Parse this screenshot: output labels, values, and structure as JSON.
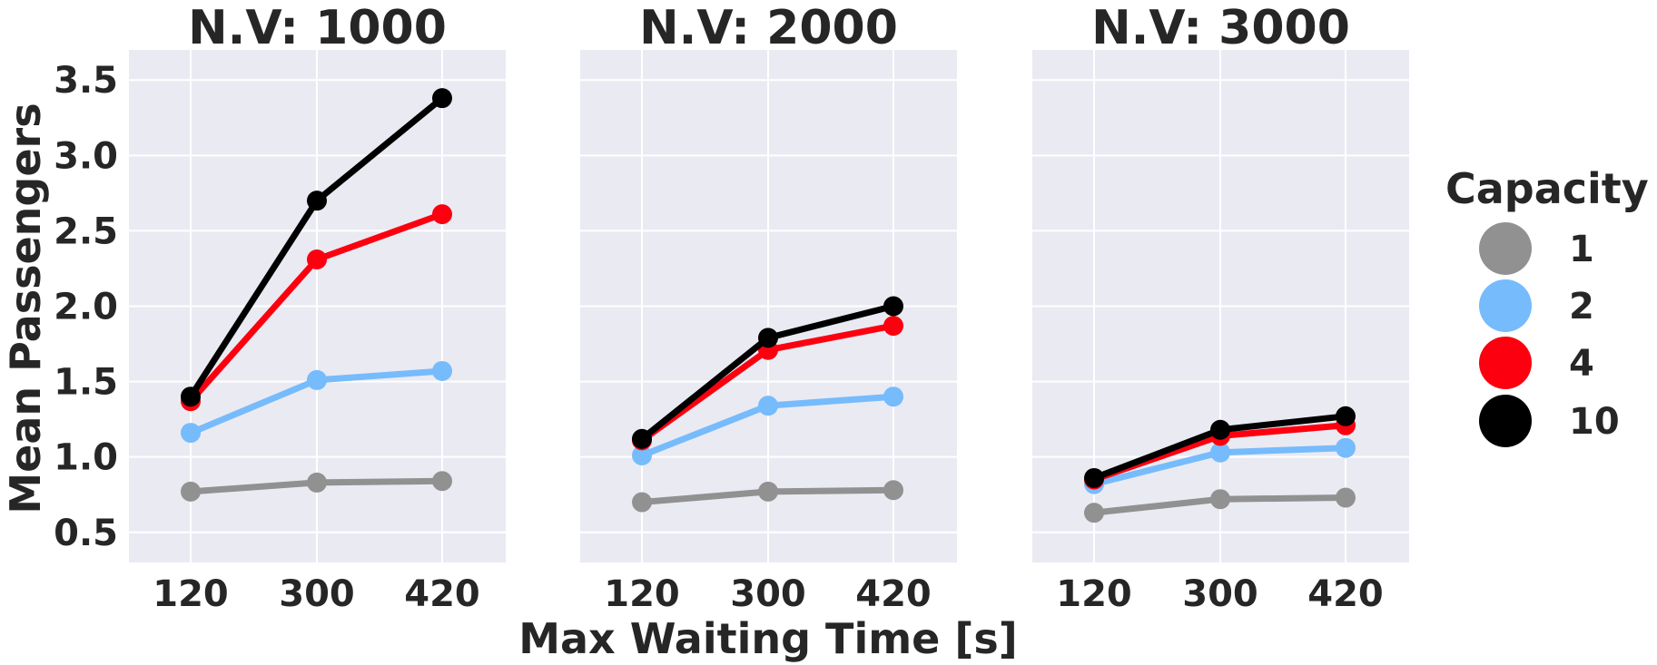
{
  "chart_data": {
    "type": "line",
    "xlabel": "Max Waiting Time [s]",
    "ylabel": "Mean Passengers",
    "ylim": [
      0.3,
      3.7
    ],
    "yticks": [
      "0.5",
      "1.0",
      "1.5",
      "2.0",
      "2.5",
      "3.0",
      "3.5"
    ],
    "categories": [
      "120",
      "300",
      "420"
    ],
    "grid": true,
    "legend": {
      "title": "Capacity",
      "placement": "right",
      "entries": [
        {
          "label": "1",
          "color": "#919191"
        },
        {
          "label": "2",
          "color": "#76BBFC"
        },
        {
          "label": "4",
          "color": "#FC000F"
        },
        {
          "label": "10",
          "color": "#000000"
        }
      ]
    },
    "panels": [
      {
        "title": "N.V: 1000",
        "series": [
          {
            "name": "1",
            "color": "#919191",
            "values": [
              0.77,
              0.83,
              0.84
            ]
          },
          {
            "name": "2",
            "color": "#76BBFC",
            "values": [
              1.16,
              1.51,
              1.57
            ]
          },
          {
            "name": "4",
            "color": "#FC000F",
            "values": [
              1.37,
              2.31,
              2.61
            ]
          },
          {
            "name": "10",
            "color": "#000000",
            "values": [
              1.4,
              2.7,
              3.38
            ]
          }
        ]
      },
      {
        "title": "N.V: 2000",
        "series": [
          {
            "name": "1",
            "color": "#919191",
            "values": [
              0.7,
              0.77,
              0.78
            ]
          },
          {
            "name": "2",
            "color": "#76BBFC",
            "values": [
              1.01,
              1.34,
              1.4
            ]
          },
          {
            "name": "4",
            "color": "#FC000F",
            "values": [
              1.11,
              1.71,
              1.87
            ]
          },
          {
            "name": "10",
            "color": "#000000",
            "values": [
              1.12,
              1.79,
              2.0
            ]
          }
        ]
      },
      {
        "title": "N.V: 3000",
        "series": [
          {
            "name": "1",
            "color": "#919191",
            "values": [
              0.63,
              0.72,
              0.73
            ]
          },
          {
            "name": "2",
            "color": "#76BBFC",
            "values": [
              0.82,
              1.03,
              1.06
            ]
          },
          {
            "name": "4",
            "color": "#FC000F",
            "values": [
              0.85,
              1.14,
              1.21
            ]
          },
          {
            "name": "10",
            "color": "#000000",
            "values": [
              0.86,
              1.18,
              1.27
            ]
          }
        ]
      }
    ]
  }
}
